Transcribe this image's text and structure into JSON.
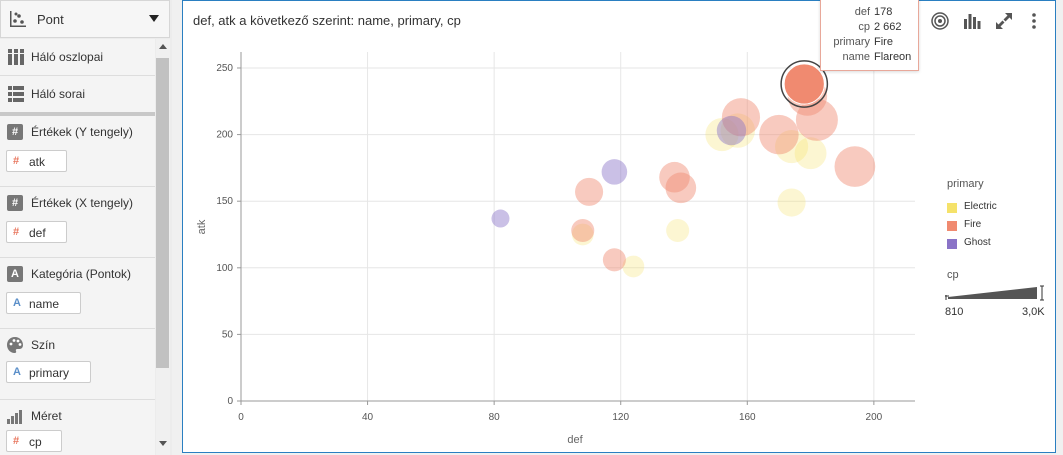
{
  "sidebar": {
    "vis_type": "Pont",
    "grid_columns_label": "Háló oszlopai",
    "grid_rows_label": "Háló sorai",
    "sections": [
      {
        "label": "Értékek (Y tengely)",
        "field": "atk",
        "field_type": "number"
      },
      {
        "label": "Értékek (X tengely)",
        "field": "def",
        "field_type": "number"
      },
      {
        "label": "Kategória (Pontok)",
        "field": "name",
        "field_type": "text"
      },
      {
        "label": "Szín",
        "field": "primary",
        "field_type": "text"
      },
      {
        "label": "Méret",
        "field": "cp",
        "field_type": "number"
      }
    ]
  },
  "tooltip": {
    "rows": [
      {
        "key": "def",
        "value": "178"
      },
      {
        "key": "cp",
        "value": "2 662"
      },
      {
        "key": "primary",
        "value": "Fire"
      },
      {
        "key": "name",
        "value": "Flareon"
      }
    ]
  },
  "legend": {
    "color_title": "primary",
    "size_title": "cp",
    "size_min_label": "810",
    "size_max_label": "3,0K"
  },
  "colors": {
    "Electric": "#f5e26a",
    "Fire": "#f08a70",
    "Ghost": "#8a73c7",
    "accent": "#2a7fc1",
    "type_number": "#e8765e",
    "type_text": "#5b8fc9"
  },
  "chart_data": {
    "type": "scatter",
    "title": "def, atk a következő szerint: name, primary, cp",
    "xlabel": "def",
    "ylabel": "atk",
    "xlim": [
      0,
      213
    ],
    "ylim": [
      0,
      262
    ],
    "xticks": [
      0,
      40,
      80,
      120,
      160,
      200
    ],
    "yticks": [
      0,
      50,
      100,
      150,
      200,
      250
    ],
    "grid": true,
    "legend_position": "right",
    "series": [
      {
        "name": "Electric",
        "color": "#f5e26a",
        "points": [
          {
            "x": 152,
            "y": 200,
            "cp": 2100
          },
          {
            "x": 157,
            "y": 203,
            "cp": 2200
          },
          {
            "x": 174,
            "y": 191,
            "cp": 2100
          },
          {
            "x": 180,
            "y": 186,
            "cp": 2000
          },
          {
            "x": 174,
            "y": 149,
            "cp": 1700
          },
          {
            "x": 138,
            "y": 128,
            "cp": 1300
          },
          {
            "x": 124,
            "y": 101,
            "cp": 1200
          },
          {
            "x": 108,
            "y": 125,
            "cp": 1200
          }
        ]
      },
      {
        "name": "Fire",
        "color": "#f08a70",
        "points": [
          {
            "x": 178,
            "y": 238,
            "cp": 2662,
            "highlighted": true
          },
          {
            "x": 179,
            "y": 229,
            "cp": 2600
          },
          {
            "x": 158,
            "y": 213,
            "cp": 2500
          },
          {
            "x": 182,
            "y": 211,
            "cp": 2800
          },
          {
            "x": 170,
            "y": 200,
            "cp": 2600
          },
          {
            "x": 194,
            "y": 176,
            "cp": 2700
          },
          {
            "x": 137,
            "y": 168,
            "cp": 1900
          },
          {
            "x": 139,
            "y": 160,
            "cp": 1900
          },
          {
            "x": 110,
            "y": 157,
            "cp": 1700
          },
          {
            "x": 108,
            "y": 128,
            "cp": 1300
          },
          {
            "x": 118,
            "y": 106,
            "cp": 1300
          }
        ]
      },
      {
        "name": "Ghost",
        "color": "#8a73c7",
        "points": [
          {
            "x": 155,
            "y": 203,
            "cp": 1800
          },
          {
            "x": 118,
            "y": 172,
            "cp": 1500
          },
          {
            "x": 82,
            "y": 137,
            "cp": 900
          }
        ]
      }
    ]
  }
}
